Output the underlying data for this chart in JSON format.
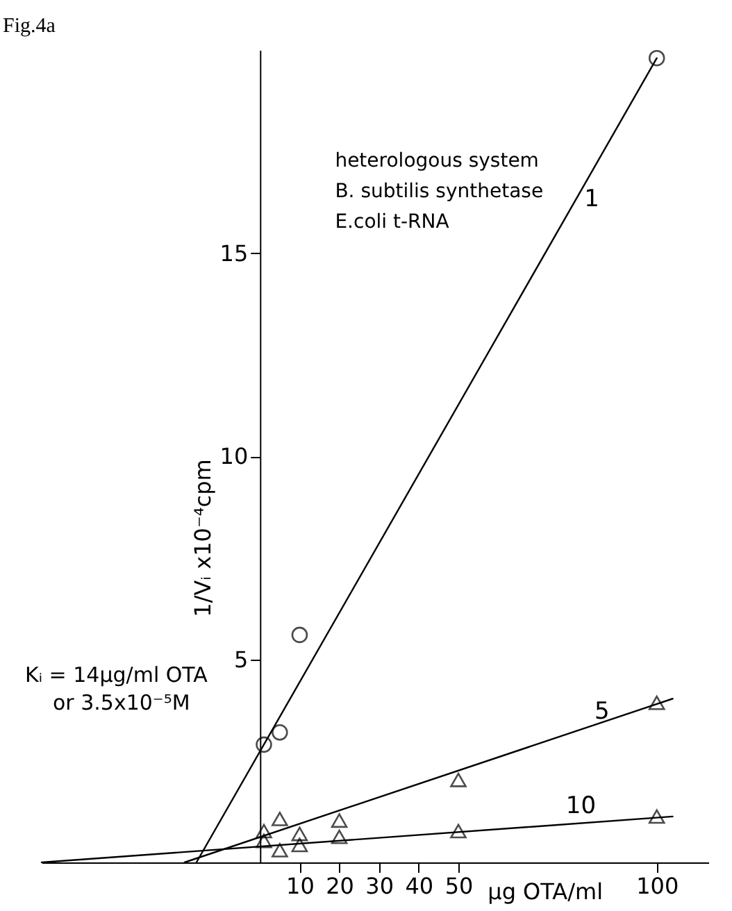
{
  "chart_data": {
    "type": "line",
    "title": "Fig.4a",
    "xlabel": "µg OTA/ml",
    "ylabel": "1/Vᵢ x10⁻⁴cpm",
    "annotations": [
      "heterologous system",
      "B. subtilis synthetase",
      "E.coli  t-RNA",
      "Kᵢ = 14µg/ml OTA",
      "or 3.5x10⁻⁵M"
    ],
    "xlim": [
      -55,
      113
    ],
    "xticks": [
      10,
      20,
      30,
      40,
      50,
      100
    ],
    "ylim": [
      0,
      20
    ],
    "yticks": [
      5,
      10,
      15
    ],
    "grid": false,
    "series": [
      {
        "name": "1",
        "color": "#000000",
        "x": [
          -16,
          100
        ],
        "values": [
          0,
          19.8
        ]
      },
      {
        "type": "scatter",
        "marker": "circle",
        "color": "#000000",
        "x": [
          1,
          5,
          10,
          100
        ],
        "values": [
          2.9,
          3.2,
          5.6,
          19.8
        ]
      },
      {
        "name": "5",
        "color": "#000000",
        "x": [
          -19,
          104
        ],
        "values": [
          0,
          4.03
        ]
      },
      {
        "type": "scatter",
        "marker": "triangle",
        "color": "#000000",
        "x": [
          1,
          5,
          10,
          20,
          50,
          100
        ],
        "values": [
          0.77,
          1.07,
          0.7,
          1.03,
          2.03,
          3.93
        ]
      },
      {
        "name": "10",
        "color": "#000000",
        "x": [
          -55,
          104
        ],
        "values": [
          0,
          1.13
        ]
      },
      {
        "type": "scatter",
        "marker": "triangle",
        "color": "#000000",
        "x": [
          1,
          5,
          10,
          20,
          50,
          100
        ],
        "values": [
          0.53,
          0.3,
          0.43,
          0.63,
          0.77,
          1.13
        ]
      }
    ]
  }
}
